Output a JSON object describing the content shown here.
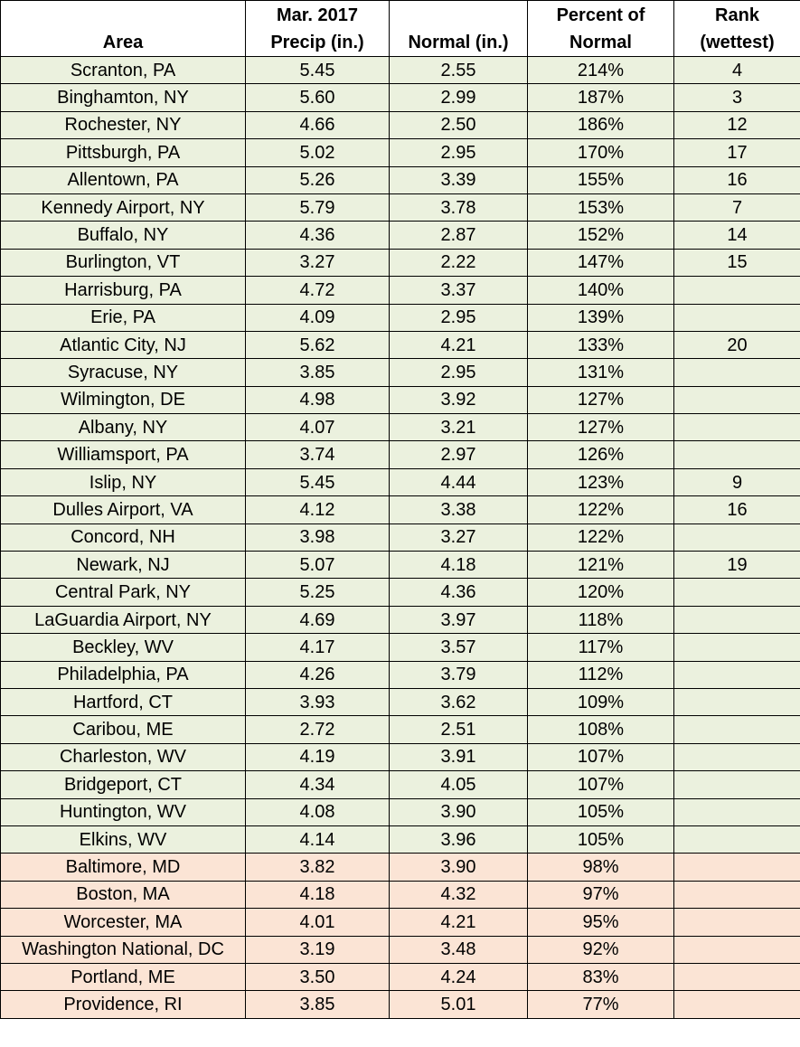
{
  "table": {
    "header": [
      [
        "Area"
      ],
      [
        "Mar. 2017",
        "Precip (in.)"
      ],
      [
        "Normal (in.)"
      ],
      [
        "Percent of",
        "Normal"
      ],
      [
        "Rank",
        "(wettest)"
      ]
    ],
    "groups": [
      {
        "color": "#ebf1de",
        "rows": [
          [
            "Scranton, PA",
            "5.45",
            "2.55",
            "214%",
            "4"
          ],
          [
            "Binghamton, NY",
            "5.60",
            "2.99",
            "187%",
            "3"
          ],
          [
            "Rochester, NY",
            "4.66",
            "2.50",
            "186%",
            "12"
          ],
          [
            "Pittsburgh, PA",
            "5.02",
            "2.95",
            "170%",
            "17"
          ],
          [
            "Allentown, PA",
            "5.26",
            "3.39",
            "155%",
            "16"
          ],
          [
            "Kennedy Airport, NY",
            "5.79",
            "3.78",
            "153%",
            "7"
          ],
          [
            "Buffalo, NY",
            "4.36",
            "2.87",
            "152%",
            "14"
          ],
          [
            "Burlington, VT",
            "3.27",
            "2.22",
            "147%",
            "15"
          ],
          [
            "Harrisburg, PA",
            "4.72",
            "3.37",
            "140%",
            null
          ],
          [
            "Erie, PA",
            "4.09",
            "2.95",
            "139%",
            null
          ],
          [
            "Atlantic City, NJ",
            "5.62",
            "4.21",
            "133%",
            "20"
          ],
          [
            "Syracuse, NY",
            "3.85",
            "2.95",
            "131%",
            null
          ],
          [
            "Wilmington, DE",
            "4.98",
            "3.92",
            "127%",
            null
          ],
          [
            "Albany, NY",
            "4.07",
            "3.21",
            "127%",
            null
          ],
          [
            "Williamsport, PA",
            "3.74",
            "2.97",
            "126%",
            null
          ],
          [
            "Islip, NY",
            "5.45",
            "4.44",
            "123%",
            "9"
          ],
          [
            "Dulles Airport, VA",
            "4.12",
            "3.38",
            "122%",
            "16"
          ],
          [
            "Concord, NH",
            "3.98",
            "3.27",
            "122%",
            null
          ],
          [
            "Newark, NJ",
            "5.07",
            "4.18",
            "121%",
            "19"
          ],
          [
            "Central Park, NY",
            "5.25",
            "4.36",
            "120%",
            null
          ],
          [
            "LaGuardia Airport, NY",
            "4.69",
            "3.97",
            "118%",
            null
          ],
          [
            "Beckley, WV",
            "4.17",
            "3.57",
            "117%",
            null
          ],
          [
            "Philadelphia, PA",
            "4.26",
            "3.79",
            "112%",
            null
          ],
          [
            "Hartford, CT",
            "3.93",
            "3.62",
            "109%",
            null
          ],
          [
            "Caribou, ME",
            "2.72",
            "2.51",
            "108%",
            null
          ],
          [
            "Charleston, WV",
            "4.19",
            "3.91",
            "107%",
            null
          ],
          [
            "Bridgeport, CT",
            "4.34",
            "4.05",
            "107%",
            null
          ],
          [
            "Huntington, WV",
            "4.08",
            "3.90",
            "105%",
            null
          ],
          [
            "Elkins, WV",
            "4.14",
            "3.96",
            "105%",
            null
          ]
        ]
      },
      {
        "color": "#fbe4d5",
        "rows": [
          [
            "Baltimore, MD",
            "3.82",
            "3.90",
            "98%",
            null
          ],
          [
            "Boston, MA",
            "4.18",
            "4.32",
            "97%",
            null
          ],
          [
            "Worcester, MA",
            "4.01",
            "4.21",
            "95%",
            null
          ],
          [
            "Washington National, DC",
            "3.19",
            "3.48",
            "92%",
            null
          ],
          [
            "Portland, ME",
            "3.50",
            "4.24",
            "83%",
            null
          ],
          [
            "Providence, RI",
            "3.85",
            "5.01",
            "77%",
            null
          ]
        ]
      }
    ]
  }
}
